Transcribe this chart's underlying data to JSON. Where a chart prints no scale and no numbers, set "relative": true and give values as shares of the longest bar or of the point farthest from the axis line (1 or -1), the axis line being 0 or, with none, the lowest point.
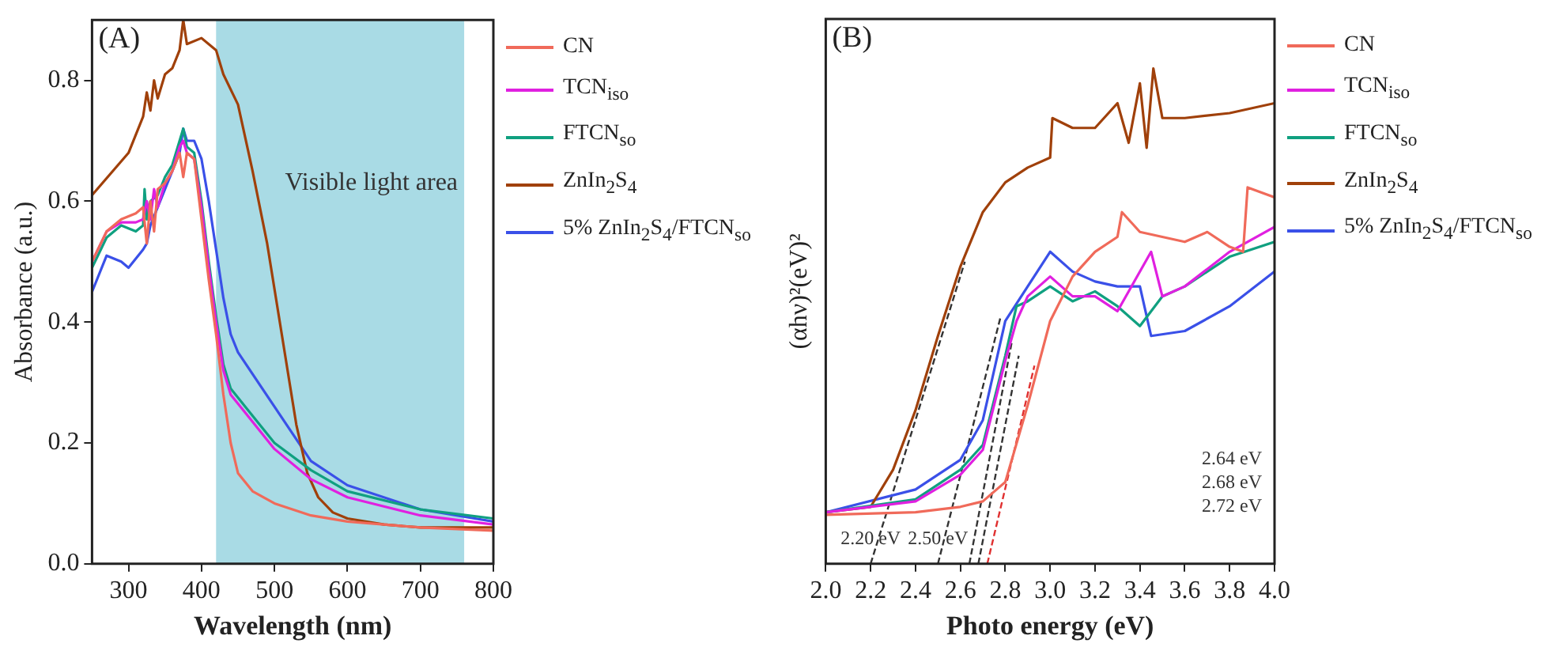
{
  "chart_data": [
    {
      "type": "line",
      "title": "(A)",
      "xlabel": "Wavelength (nm)",
      "ylabel": "Absorbance (a.u.)",
      "xlim": [
        250,
        800
      ],
      "ylim": [
        0,
        0.9
      ],
      "xticks": [
        300,
        400,
        500,
        600,
        700,
        800
      ],
      "yticks": [
        {
          "value": 0,
          "label": "0.0"
        },
        0.2,
        0.4,
        0.6,
        0.8
      ],
      "grid": false,
      "legend": "right",
      "marker": "none",
      "line_style": "solid",
      "bands": [
        {
          "axis": "x",
          "from": 420,
          "to": 760,
          "label": "Visible light area",
          "color": "#8ccfdc"
        }
      ],
      "series": [
        {
          "name": "CN",
          "color": "#f06a5a",
          "x": [
            250,
            270,
            290,
            310,
            320,
            325,
            330,
            335,
            340,
            350,
            360,
            370,
            375,
            380,
            390,
            400,
            410,
            420,
            430,
            440,
            450,
            470,
            500,
            550,
            600,
            700,
            800
          ],
          "values": [
            0.5,
            0.55,
            0.57,
            0.58,
            0.59,
            0.53,
            0.6,
            0.55,
            0.62,
            0.63,
            0.65,
            0.68,
            0.64,
            0.68,
            0.67,
            0.57,
            0.47,
            0.38,
            0.28,
            0.2,
            0.15,
            0.12,
            0.1,
            0.08,
            0.07,
            0.06,
            0.055
          ]
        },
        {
          "name": "TCN$_{iso}$",
          "color": "#e020e0",
          "x": [
            250,
            270,
            290,
            310,
            320,
            325,
            330,
            335,
            340,
            350,
            360,
            370,
            375,
            380,
            390,
            400,
            410,
            420,
            430,
            440,
            460,
            500,
            550,
            600,
            700,
            800
          ],
          "values": [
            0.5,
            0.55,
            0.565,
            0.565,
            0.57,
            0.6,
            0.57,
            0.62,
            0.59,
            0.63,
            0.65,
            0.69,
            0.7,
            0.68,
            0.67,
            0.59,
            0.49,
            0.4,
            0.32,
            0.28,
            0.25,
            0.19,
            0.14,
            0.11,
            0.08,
            0.065
          ]
        },
        {
          "name": "FTCN$_{so}$",
          "color": "#10a080",
          "x": [
            250,
            270,
            290,
            310,
            320,
            322,
            325,
            330,
            340,
            350,
            360,
            370,
            375,
            380,
            390,
            400,
            410,
            420,
            430,
            440,
            460,
            500,
            550,
            600,
            700,
            800
          ],
          "values": [
            0.49,
            0.54,
            0.56,
            0.55,
            0.56,
            0.62,
            0.57,
            0.6,
            0.61,
            0.64,
            0.66,
            0.7,
            0.72,
            0.69,
            0.68,
            0.6,
            0.5,
            0.41,
            0.33,
            0.29,
            0.26,
            0.2,
            0.155,
            0.12,
            0.09,
            0.075
          ]
        },
        {
          "name": "ZnIn$_{2}$S$_{4}$",
          "color": "#a0400a",
          "x": [
            250,
            300,
            320,
            325,
            330,
            335,
            340,
            350,
            360,
            370,
            375,
            380,
            400,
            420,
            430,
            450,
            470,
            490,
            510,
            530,
            545,
            560,
            580,
            600,
            650,
            700,
            800
          ],
          "values": [
            0.61,
            0.68,
            0.74,
            0.78,
            0.75,
            0.8,
            0.77,
            0.81,
            0.82,
            0.85,
            0.9,
            0.86,
            0.87,
            0.85,
            0.81,
            0.76,
            0.65,
            0.53,
            0.38,
            0.23,
            0.15,
            0.11,
            0.085,
            0.075,
            0.065,
            0.06,
            0.06
          ]
        },
        {
          "name": "5% ZnIn$_{2}$S$_{4}$/FTCN$_{so}$",
          "color": "#3a50e8",
          "x": [
            250,
            270,
            290,
            300,
            320,
            325,
            330,
            350,
            370,
            375,
            380,
            390,
            400,
            410,
            420,
            430,
            440,
            450,
            500,
            550,
            600,
            700,
            800
          ],
          "values": [
            0.45,
            0.51,
            0.5,
            0.49,
            0.52,
            0.53,
            0.56,
            0.62,
            0.68,
            0.72,
            0.7,
            0.7,
            0.67,
            0.6,
            0.52,
            0.44,
            0.38,
            0.35,
            0.26,
            0.17,
            0.13,
            0.09,
            0.07
          ]
        }
      ]
    },
    {
      "type": "line",
      "title": "(B)",
      "xlabel": "Photo energy (eV)",
      "ylabel": "(αhν)²(eV)²",
      "relative": true,
      "xlim": [
        2.0,
        4.0
      ],
      "xticks": [
        {
          "value": 2.0,
          "label": "2.0"
        },
        2.2,
        2.4,
        2.6,
        2.8,
        {
          "value": 3.0,
          "label": "3.0"
        },
        3.2,
        3.4,
        3.6,
        3.8,
        {
          "value": 4.0,
          "label": "4.0"
        }
      ],
      "grid": false,
      "legend": "right",
      "marker": "none",
      "line_style": "solid",
      "annotations": [
        {
          "text": "2.20 eV",
          "x": 2.2,
          "y": 0.03
        },
        {
          "text": "2.50 eV",
          "x": 2.5,
          "y": 0.03
        },
        "2.64 eV",
        "2.68 eV",
        "2.72 eV"
      ],
      "series": [
        {
          "name": "CN",
          "color": "#f06a5a",
          "x": [
            2.0,
            2.4,
            2.6,
            2.7,
            2.8,
            2.9,
            3.0,
            3.1,
            3.2,
            3.3,
            3.32,
            3.4,
            3.5,
            3.6,
            3.7,
            3.8,
            3.86,
            3.88,
            4.0
          ],
          "values": [
            0.099,
            0.104,
            0.115,
            0.126,
            0.165,
            0.32,
            0.49,
            0.58,
            0.63,
            0.66,
            0.71,
            0.67,
            0.66,
            0.65,
            0.67,
            0.64,
            0.63,
            0.76,
            0.74
          ]
        },
        {
          "name": "TCN$_{iso}$",
          "color": "#e020e0",
          "x": [
            2.0,
            2.4,
            2.6,
            2.7,
            2.8,
            2.85,
            2.9,
            3.0,
            3.1,
            3.2,
            3.3,
            3.45,
            3.5,
            3.6,
            3.8,
            4.0
          ],
          "values": [
            0.104,
            0.126,
            0.18,
            0.23,
            0.41,
            0.49,
            0.54,
            0.58,
            0.54,
            0.54,
            0.51,
            0.63,
            0.54,
            0.56,
            0.63,
            0.68
          ]
        },
        {
          "name": "FTCN$_{so}$",
          "color": "#10a080",
          "x": [
            2.0,
            2.4,
            2.6,
            2.7,
            2.8,
            2.85,
            2.9,
            3.0,
            3.1,
            3.2,
            3.3,
            3.4,
            3.5,
            3.6,
            3.8,
            4.0
          ],
          "values": [
            0.104,
            0.13,
            0.19,
            0.24,
            0.42,
            0.52,
            0.53,
            0.56,
            0.53,
            0.55,
            0.52,
            0.48,
            0.54,
            0.56,
            0.62,
            0.65
          ]
        },
        {
          "name": "ZnIn$_{2}$S$_{4}$",
          "color": "#a0400a",
          "x": [
            2.0,
            2.2,
            2.3,
            2.4,
            2.5,
            2.6,
            2.7,
            2.8,
            2.9,
            3.0,
            3.01,
            3.1,
            3.2,
            3.3,
            3.35,
            3.4,
            3.43,
            3.46,
            3.5,
            3.6,
            3.8,
            4.0
          ],
          "values": [
            0.104,
            0.115,
            0.19,
            0.31,
            0.46,
            0.6,
            0.71,
            0.77,
            0.8,
            0.82,
            0.9,
            0.88,
            0.88,
            0.93,
            0.85,
            0.97,
            0.84,
            1.0,
            0.9,
            0.9,
            0.91,
            0.93
          ]
        },
        {
          "name": "5% ZnIn$_{2}$S$_{4}$/FTCN$_{so}$",
          "color": "#3a50e8",
          "x": [
            2.0,
            2.4,
            2.6,
            2.7,
            2.8,
            2.9,
            3.0,
            3.1,
            3.2,
            3.3,
            3.4,
            3.45,
            3.6,
            3.8,
            4.0
          ],
          "values": [
            0.104,
            0.15,
            0.21,
            0.29,
            0.49,
            0.56,
            0.63,
            0.59,
            0.57,
            0.56,
            0.56,
            0.46,
            0.47,
            0.52,
            0.59
          ]
        },
        {
          "color": "#333333",
          "line_style": "dashed",
          "x": [
            2.2,
            2.62
          ],
          "values": [
            0,
            0.61
          ]
        },
        {
          "color": "#333333",
          "line_style": "dashed",
          "x": [
            2.5,
            2.78
          ],
          "values": [
            0,
            0.5
          ]
        },
        {
          "color": "#333333",
          "line_style": "dashed",
          "x": [
            2.64,
            2.83
          ],
          "values": [
            0,
            0.45
          ]
        },
        {
          "color": "#333333",
          "line_style": "dashed",
          "x": [
            2.68,
            2.86
          ],
          "values": [
            0,
            0.42
          ]
        },
        {
          "color": "#e03030",
          "line_style": "dashed",
          "x": [
            2.72,
            2.93
          ],
          "values": [
            0,
            0.4
          ]
        }
      ]
    }
  ]
}
